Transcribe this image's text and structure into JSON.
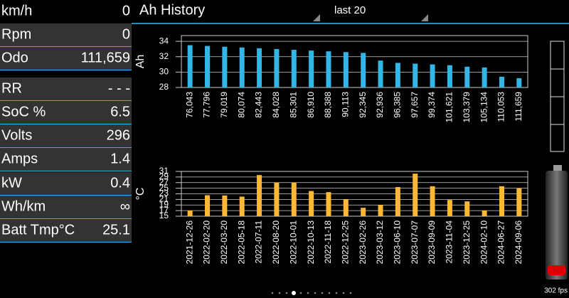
{
  "header": {
    "speed_label": "km/h",
    "speed_value": "0",
    "title": "Ah History",
    "dropdown": "last 20"
  },
  "panel": {
    "rows": [
      [
        "Rpm",
        "0"
      ],
      [
        "Odo",
        "111,659"
      ],
      [
        "RR",
        "- - -"
      ],
      [
        "SoC %",
        "6.5"
      ],
      [
        "Volts",
        "296"
      ],
      [
        "Amps",
        "1.4"
      ],
      [
        "kW",
        "0.4"
      ],
      [
        "Wh/km",
        "∞"
      ],
      [
        "Batt Tmp°C",
        "25.1"
      ]
    ]
  },
  "fps": "302 fps",
  "chart_data": [
    {
      "type": "bar",
      "y_label": "Ah",
      "color": "#33b5e5",
      "grid": true,
      "categories": [
        "76,043",
        "77,796",
        "79,019",
        "80,074",
        "82,443",
        "84,028",
        "85,301",
        "86,910",
        "88,388",
        "90,113",
        "92,345",
        "92,936",
        "96,385",
        "97,657",
        "99,374",
        "101,621",
        "103,379",
        "105,134",
        "110,053",
        "111,659"
      ],
      "values": [
        33.5,
        33.4,
        33.3,
        33.2,
        33.1,
        33.0,
        32.9,
        32.8,
        32.7,
        32.6,
        32.5,
        31.5,
        31.2,
        31.1,
        31.0,
        30.9,
        30.7,
        30.6,
        29.4,
        29.2
      ],
      "ylim": [
        28,
        34.75
      ],
      "yticks": [
        28,
        30,
        32,
        34
      ]
    },
    {
      "type": "bar",
      "y_label": "°C",
      "color": "#ffb833",
      "grid": true,
      "categories": [
        "2021-12-26",
        "2022-02-20",
        "2022-03-20",
        "2022-05-18",
        "2022-07-11",
        "2022-08-20",
        "2022-10-01",
        "2022-10-13",
        "2022-11-18",
        "2022-12-25",
        "2023-02-26",
        "2023-03-12",
        "2023-06-10",
        "2023-07-07",
        "2023-09-09",
        "2023-11-04",
        "2023-12-25",
        "2024-02-10",
        "2024-06-27",
        "2024-09-06"
      ],
      "values": [
        17,
        22.5,
        22.4,
        22,
        29.7,
        27,
        27,
        24,
        23.6,
        21,
        18,
        19,
        25.4,
        30.2,
        25.7,
        20.8,
        20.3,
        17,
        25.7,
        25
      ],
      "ylim": [
        15,
        31
      ],
      "yticks": [
        15,
        17,
        19,
        21,
        23,
        25,
        27,
        29,
        31
      ]
    }
  ]
}
